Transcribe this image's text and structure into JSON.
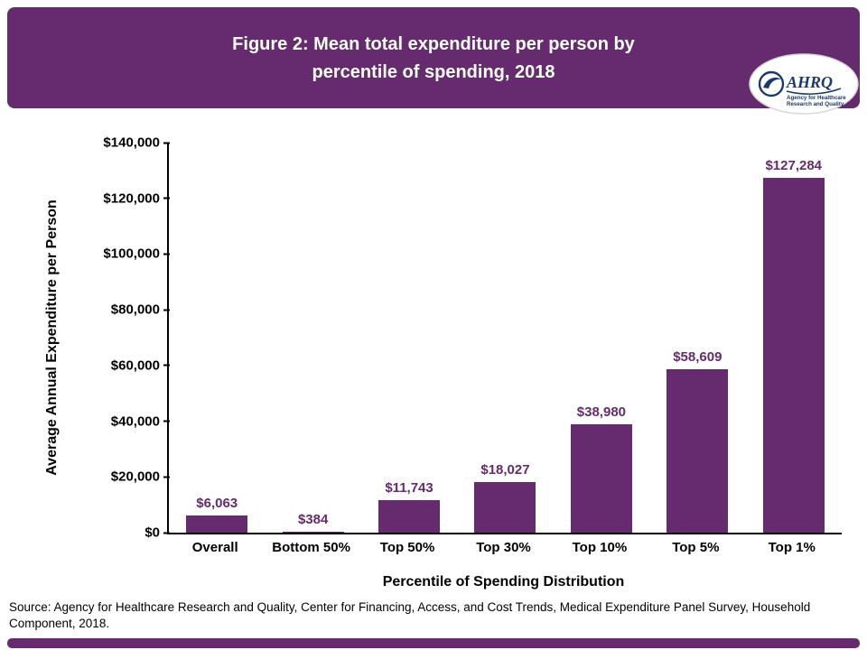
{
  "header": {
    "title_line1": "Figure 2:  Mean total expenditure per person by",
    "title_line2": "percentile of spending, 2018",
    "background_color": "#662a6e"
  },
  "logo": {
    "acronym": "AHRQ",
    "tagline_line1": "Agency for Healthcare",
    "tagline_line2": "Research and Quality"
  },
  "chart_data": {
    "type": "bar",
    "title": "Figure 2: Mean total expenditure per person by percentile of spending, 2018",
    "categories": [
      "Overall",
      "Bottom 50%",
      "Top 50%",
      "Top 30%",
      "Top 10%",
      "Top 5%",
      "Top 1%"
    ],
    "values": [
      6063,
      384,
      11743,
      18027,
      38980,
      58609,
      127284
    ],
    "value_labels": [
      "$6,063",
      "$384",
      "$11,743",
      "$18,027",
      "$38,980",
      "$58,609",
      "$127,284"
    ],
    "xlabel": "Percentile of Spending Distribution",
    "ylabel": "Average Annual Expenditure per Person",
    "ylim": [
      0,
      140000
    ],
    "ytick_step": 20000,
    "ytick_labels": [
      "$0",
      "$20,000",
      "$40,000",
      "$60,000",
      "$80,000",
      "$100,000",
      "$120,000",
      "$140,000"
    ],
    "bar_color": "#662a6e",
    "grid": false,
    "legend": false
  },
  "source": {
    "text": "Source: Agency for Healthcare Research and Quality, Center for Financing, Access, and Cost Trends, Medical Expenditure Panel Survey, Household Component, 2018."
  },
  "colors": {
    "accent_purple": "#662a6e",
    "value_label_purple": "#662a6e",
    "logo_blue": "#1b3a6b"
  }
}
